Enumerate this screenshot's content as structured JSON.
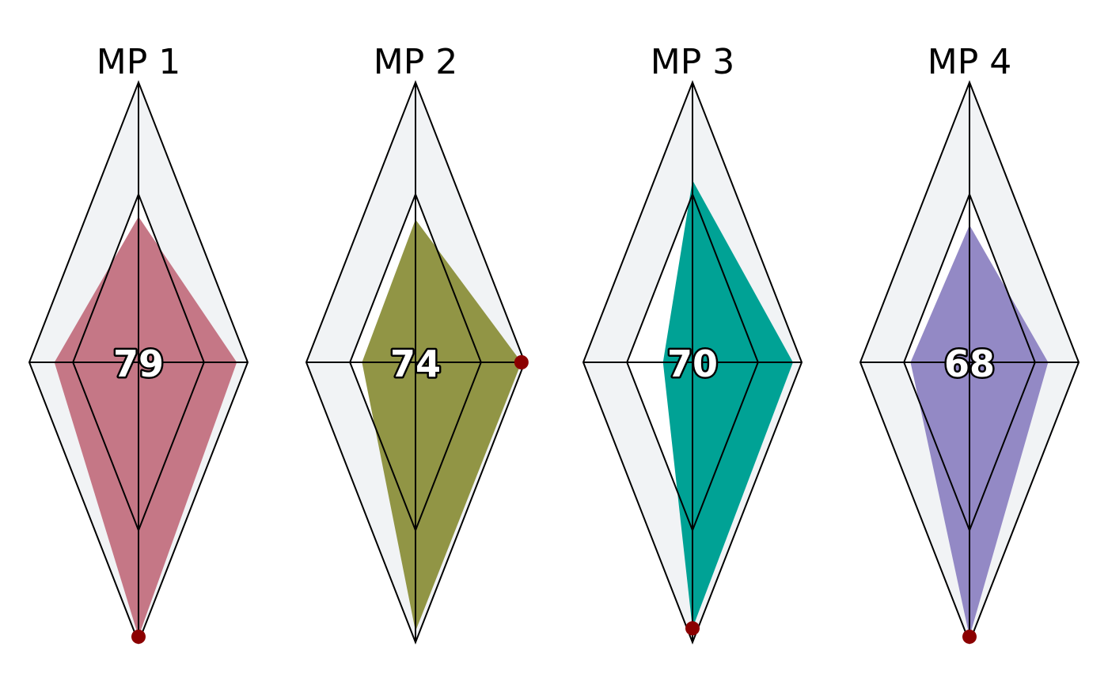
{
  "chart_data": {
    "type": "radar",
    "axes": [
      "top",
      "right",
      "bottom",
      "left"
    ],
    "range": [
      0,
      100
    ],
    "rings": [
      60,
      100
    ],
    "band_color": "#f1f3f5",
    "grid_color": "#000000",
    "highlight_color": "#8b0000",
    "panels": [
      {
        "title": "MP 1",
        "score": "79",
        "color": "#c57786",
        "values": [
          52,
          90,
          98,
          77
        ],
        "highlight_axis": 2,
        "highlight_value": 98
      },
      {
        "title": "MP 2",
        "score": "74",
        "color": "#919545",
        "values": [
          51,
          97,
          96,
          49
        ],
        "highlight_axis": 1,
        "highlight_value": 97
      },
      {
        "title": "MP 3",
        "score": "70",
        "color": "#00a295",
        "values": [
          65,
          92,
          95,
          27
        ],
        "highlight_axis": 2,
        "highlight_value": 95
      },
      {
        "title": "MP 4",
        "score": "68",
        "color": "#9389c5",
        "values": [
          49,
          72,
          98,
          54
        ],
        "highlight_axis": 2,
        "highlight_value": 98
      }
    ]
  }
}
